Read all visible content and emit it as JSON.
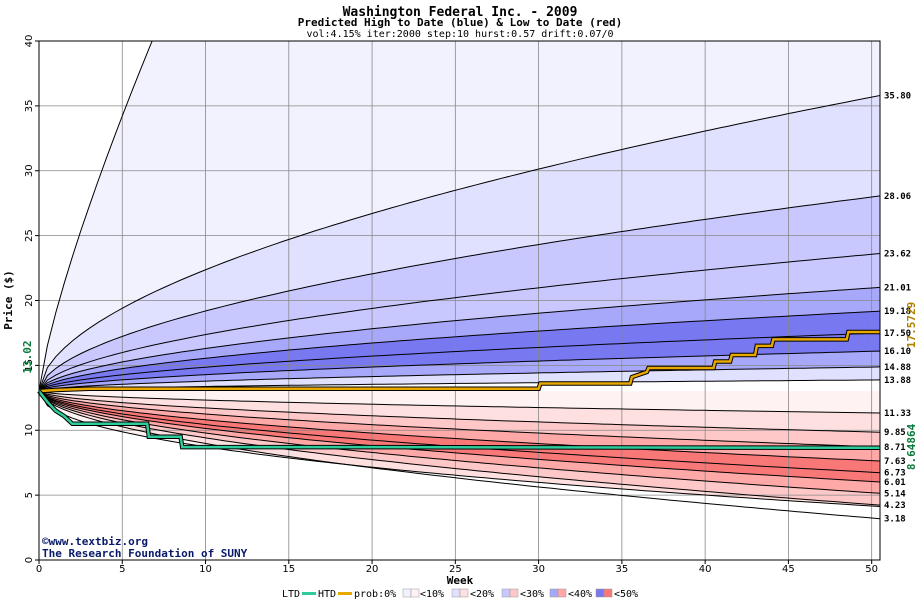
{
  "chart_data": {
    "type": "line",
    "title": "Washington Federal Inc. - 2009",
    "subtitle": "Predicted High to Date (blue) &  Low to Date (red)",
    "params": "vol:4.15% iter:2000 step:10 hurst:0.57 drift:0.07/0",
    "xlabel": "Week",
    "ylabel": "Price ($)",
    "xlim": [
      0,
      50.5
    ],
    "ylim": [
      0,
      40
    ],
    "x_ticks": [
      0,
      5,
      10,
      15,
      20,
      25,
      30,
      35,
      40,
      45,
      50
    ],
    "y_ticks": [
      0,
      5,
      10,
      15,
      20,
      25,
      30,
      35,
      40
    ],
    "start_price": 13.02,
    "start_price_label": "13.02",
    "high_series_final_label": "17.5729",
    "low_series_final_label": "8.64864",
    "high_band_end_values": [
      35.8,
      28.06,
      23.62,
      21.01,
      19.18,
      17.5,
      16.1,
      14.88,
      13.88
    ],
    "low_band_end_values": [
      11.33,
      9.85,
      8.71,
      7.63,
      6.73,
      6.01,
      5.14,
      4.23,
      3.18
    ],
    "right_labels": [
      "35.80",
      "28.06",
      "23.62",
      "21.01",
      "19.18",
      "17.50",
      "16.10",
      "14.88",
      "13.88",
      "11.33",
      "9.85",
      "8.71",
      "7.63",
      "6.73",
      "6.01",
      "5.14",
      "4.23",
      "3.18"
    ],
    "series": [
      {
        "name": "HTD",
        "color": "#e8a800",
        "x": [
          0,
          1,
          2,
          3,
          5,
          10,
          15,
          20,
          25,
          30,
          30.1,
          35.5,
          35.6,
          36.5,
          36.6,
          40.5,
          40.6,
          41.5,
          41.6,
          43,
          43.1,
          44,
          44.1,
          48.5,
          48.6,
          50.5
        ],
        "values": [
          13.02,
          13.1,
          13.15,
          13.2,
          13.2,
          13.2,
          13.2,
          13.2,
          13.2,
          13.2,
          13.6,
          13.6,
          14.1,
          14.5,
          14.8,
          14.8,
          15.3,
          15.3,
          15.8,
          15.8,
          16.5,
          16.5,
          17.0,
          17.0,
          17.57,
          17.57
        ]
      },
      {
        "name": "LTD",
        "color": "#2ecc9a",
        "x": [
          0,
          0.5,
          1,
          1.5,
          2,
          4,
          6.5,
          6.6,
          8.5,
          8.6,
          15,
          20,
          30,
          40,
          50,
          50.5
        ],
        "values": [
          13.02,
          12.2,
          11.5,
          11.1,
          10.5,
          10.5,
          10.5,
          9.5,
          9.5,
          8.7,
          8.7,
          8.7,
          8.68,
          8.66,
          8.65,
          8.65
        ]
      }
    ],
    "legend": {
      "items": [
        "LTD",
        "HTD",
        "prob:0%",
        "<10%",
        "<20%",
        "<30%",
        "<40%",
        "<50%"
      ],
      "ltd_color": "#2ecc9a",
      "htd_color": "#e8a800",
      "blue_shades": [
        "#ffffff",
        "#f2f2ff",
        "#e0e0ff",
        "#c8c8ff",
        "#a8a8fb",
        "#7878f0"
      ],
      "red_shades": [
        "#ffffff",
        "#fff2f2",
        "#ffe0e0",
        "#ffc8c8",
        "#ffa8a8",
        "#f87878"
      ]
    },
    "credit_lines": [
      "©www.textbiz.org",
      "The Research Foundation of SUNY"
    ],
    "grid": true
  }
}
